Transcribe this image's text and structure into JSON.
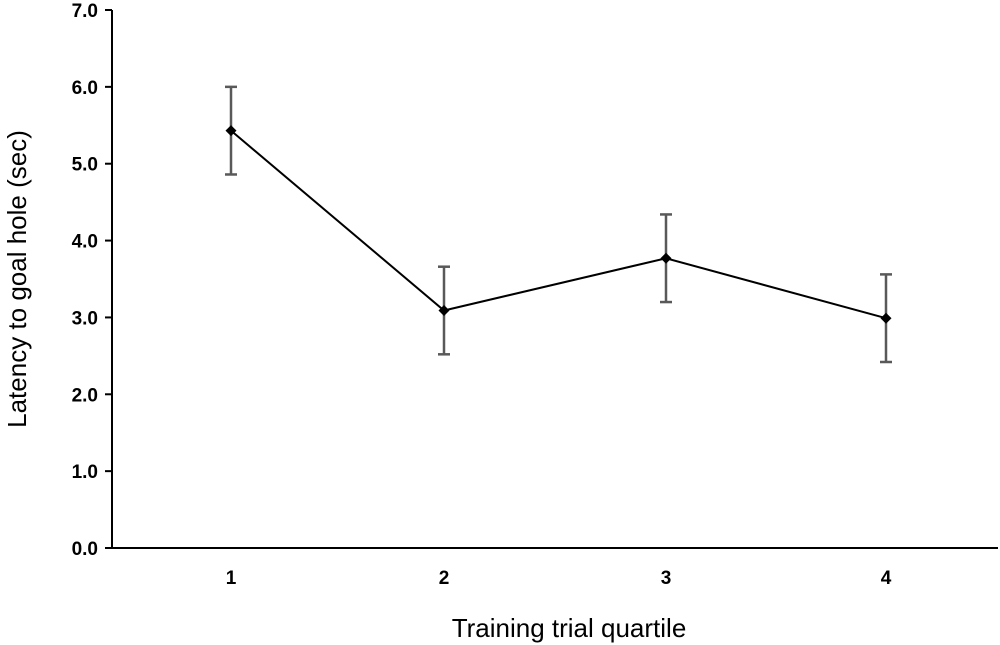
{
  "chart_data": {
    "type": "line",
    "title": "",
    "xlabel": "Training trial quartile",
    "ylabel": "Latency to goal hole (sec)",
    "categories": [
      "1",
      "2",
      "3",
      "4"
    ],
    "series": [
      {
        "values": [
          5.43,
          3.09,
          3.77,
          2.99
        ],
        "error": [
          0.57,
          0.57,
          0.57,
          0.57
        ],
        "marker": "diamond",
        "color": "#000000",
        "error_color": "#595959"
      }
    ],
    "ylim": [
      0,
      7
    ],
    "yticks": [
      "0.0",
      "1.0",
      "2.0",
      "3.0",
      "4.0",
      "5.0",
      "6.0",
      "7.0"
    ],
    "grid": false,
    "legend": "none"
  }
}
